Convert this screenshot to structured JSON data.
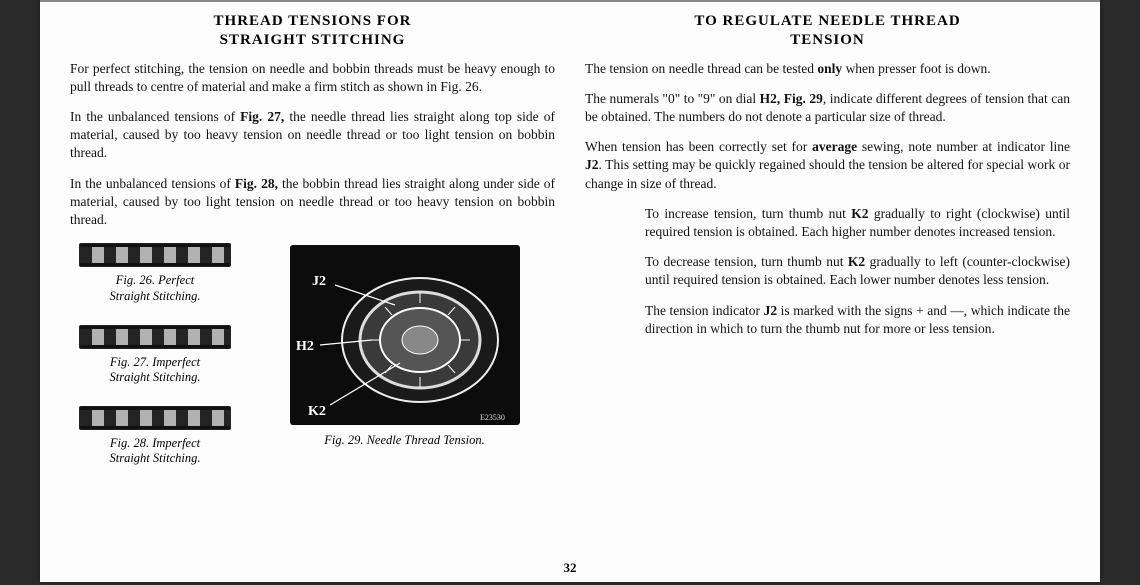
{
  "page_number": "32",
  "left": {
    "heading": "THREAD TENSIONS FOR\nSTRAIGHT STITCHING",
    "p1": "For perfect stitching, the tension on needle and bobbin threads must be heavy enough to pull threads to centre of material and make a firm stitch as shown in Fig. 26.",
    "p2_a": "In the unbalanced tensions of ",
    "p2_b": "Fig. 27,",
    "p2_c": " the needle thread lies straight along top side of material, caused by too heavy tension on needle thread or too light tension on bobbin thread.",
    "p3_a": "In the unbalanced tensions of ",
    "p3_b": "Fig. 28,",
    "p3_c": " the bobbin thread lies straight along under side of material, caused by too light tension on needle thread or too heavy tension on bobbin thread.",
    "fig26": "Fig. 26.  Perfect\nStraight Stitching.",
    "fig27": "Fig. 27.  Imperfect\nStraight Stitching.",
    "fig28": "Fig. 28.  Imperfect\nStraight Stitching.",
    "fig29": "Fig. 29.  Needle Thread Tension.",
    "dial_labels": {
      "j2": "J2",
      "h2": "H2",
      "k2": "K2",
      "eng": "E23530"
    }
  },
  "right": {
    "heading": "TO REGULATE NEEDLE THREAD\nTENSION",
    "p1_a": "The tension on needle thread can be tested ",
    "p1_b": "only",
    "p1_c": " when presser foot is down.",
    "p2_a": "The numerals \"0\" to \"9\" on dial ",
    "p2_b": "H2, Fig. 29",
    "p2_c": ", indicate different degrees of tension that can be obtained.  The numbers do not denote a particular size of thread.",
    "p3_a": "When tension has been correctly set for ",
    "p3_b": "average",
    "p3_c": " sewing, note number at indicator line ",
    "p3_d": "J2",
    "p3_e": ".  This setting may be quickly regained should the tension be altered for special work or change in size of thread.",
    "p4_a": "To increase tension, turn thumb nut ",
    "p4_b": "K2",
    "p4_c": " gradually to right (clockwise) until required tension is obtained.  Each higher number denotes increased tension.",
    "p5_a": "To decrease tension, turn thumb nut ",
    "p5_b": "K2",
    "p5_c": " gradually to left (counter-clockwise) until required tension is obtained.  Each lower number denotes less tension.",
    "p6_a": "The tension indicator ",
    "p6_b": "J2",
    "p6_c": " is marked with the signs + and —, which indicate the direction in which to turn the thumb nut for more or less tension."
  }
}
